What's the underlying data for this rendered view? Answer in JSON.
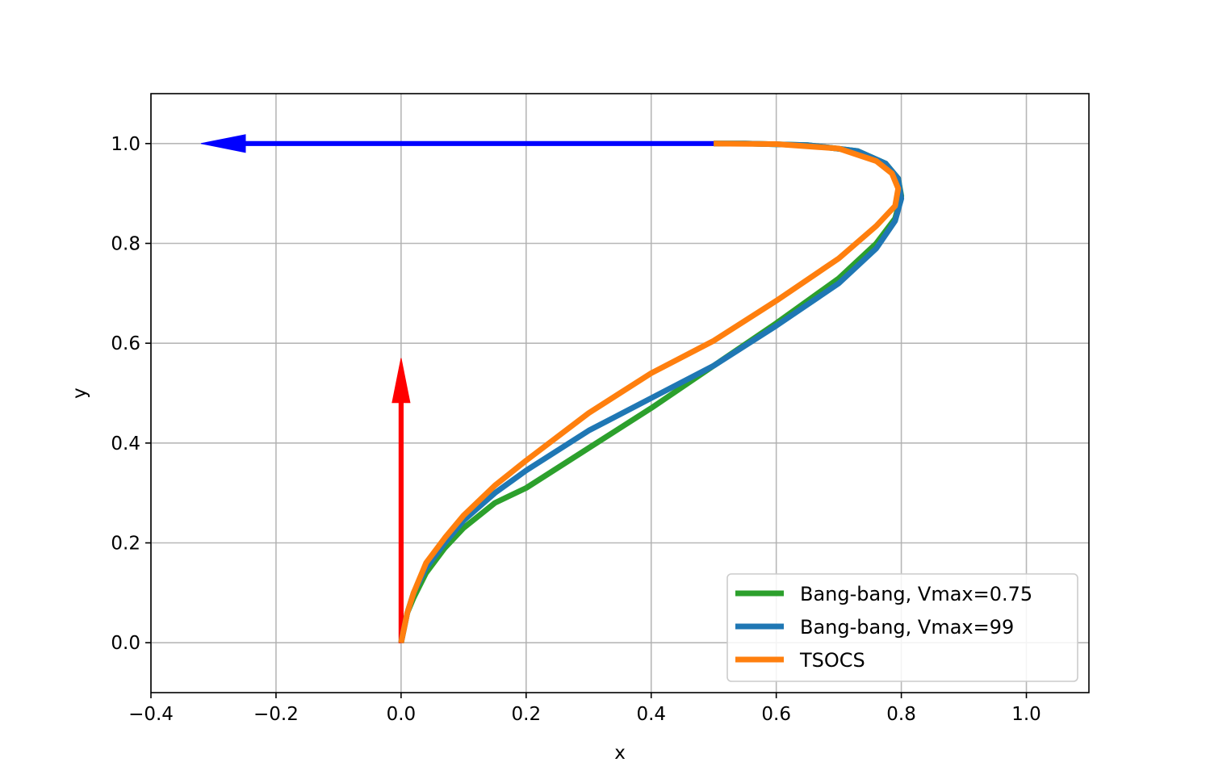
{
  "chart_data": {
    "type": "line",
    "title": "",
    "xlabel": "x",
    "ylabel": "y",
    "xlim": [
      -0.4,
      1.1
    ],
    "ylim": [
      -0.1,
      1.1
    ],
    "xticks": [
      -0.4,
      -0.2,
      0.0,
      0.2,
      0.4,
      0.6,
      0.8,
      1.0
    ],
    "xtick_labels": [
      "−0.4",
      "−0.2",
      "0.0",
      "0.2",
      "0.4",
      "0.6",
      "0.8",
      "1.0"
    ],
    "yticks": [
      0.0,
      0.2,
      0.4,
      0.6,
      0.8,
      1.0
    ],
    "ytick_labels": [
      "0.0",
      "0.2",
      "0.4",
      "0.6",
      "0.8",
      "1.0"
    ],
    "grid": true,
    "legend_position": "lower-right",
    "series": [
      {
        "name": "Bang-bang, Vmax=0.75",
        "color": "#2ca02c",
        "x": [
          0.0,
          0.01,
          0.02,
          0.04,
          0.07,
          0.1,
          0.15,
          0.2,
          0.3,
          0.4,
          0.5,
          0.6,
          0.7,
          0.76,
          0.79,
          0.8,
          0.795,
          0.775,
          0.73,
          0.65,
          0.55,
          0.5
        ],
        "y": [
          0.0,
          0.06,
          0.09,
          0.14,
          0.19,
          0.23,
          0.28,
          0.31,
          0.39,
          0.47,
          0.555,
          0.64,
          0.73,
          0.8,
          0.85,
          0.895,
          0.93,
          0.96,
          0.985,
          0.997,
          1.0,
          1.0
        ]
      },
      {
        "name": "Bang-bang, Vmax=99",
        "color": "#1f77b4",
        "x": [
          0.0,
          0.01,
          0.02,
          0.04,
          0.07,
          0.1,
          0.15,
          0.2,
          0.3,
          0.4,
          0.5,
          0.6,
          0.7,
          0.76,
          0.79,
          0.8,
          0.795,
          0.775,
          0.73,
          0.65,
          0.55,
          0.5
        ],
        "y": [
          0.0,
          0.06,
          0.1,
          0.15,
          0.2,
          0.245,
          0.3,
          0.345,
          0.425,
          0.49,
          0.555,
          0.635,
          0.72,
          0.79,
          0.845,
          0.89,
          0.93,
          0.96,
          0.985,
          0.997,
          1.0,
          1.0
        ]
      },
      {
        "name": "TSOCS",
        "color": "#ff7f0e",
        "x": [
          0.0,
          0.01,
          0.02,
          0.04,
          0.07,
          0.1,
          0.15,
          0.2,
          0.3,
          0.4,
          0.5,
          0.6,
          0.7,
          0.76,
          0.79,
          0.795,
          0.785,
          0.76,
          0.7,
          0.6,
          0.5
        ],
        "y": [
          0.0,
          0.06,
          0.1,
          0.16,
          0.21,
          0.255,
          0.315,
          0.365,
          0.46,
          0.54,
          0.605,
          0.685,
          0.77,
          0.835,
          0.875,
          0.91,
          0.94,
          0.965,
          0.99,
          0.999,
          1.0
        ]
      }
    ],
    "annotations": [
      {
        "name": "start-direction-arrow",
        "color": "#ff0000",
        "from": [
          0.0,
          0.0
        ],
        "to": [
          0.0,
          0.57
        ]
      },
      {
        "name": "end-direction-arrow",
        "color": "#0000ff",
        "from": [
          0.5,
          1.0
        ],
        "to": [
          -0.32,
          1.0
        ]
      }
    ]
  }
}
